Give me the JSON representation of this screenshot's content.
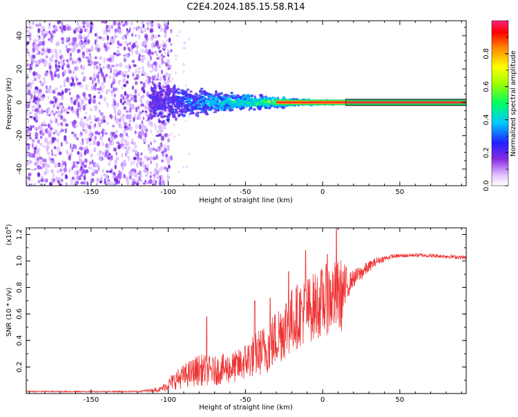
{
  "title": "C2E4.2024.185.15.58.R14",
  "colors": {
    "snr_line": "#ee3333",
    "signal_core": "#ff3030",
    "scatter_purple": "#7b2fe0",
    "axis": "#000000"
  },
  "chart_data": [
    {
      "type": "heatmap",
      "name": "spectrogram",
      "xlabel": "Height of straight line (km)",
      "ylabel": "Frequency (Hz)",
      "xlim": [
        -192,
        93
      ],
      "ylim": [
        -50,
        49
      ],
      "x_ticks": [
        -150,
        -100,
        -50,
        0,
        50
      ],
      "y_ticks": [
        -40,
        -20,
        0,
        20,
        40
      ],
      "signal_frequency": 0,
      "spread_hz": [
        [
          -110,
          16
        ],
        [
          -90,
          12
        ],
        [
          -70,
          9
        ],
        [
          -50,
          6
        ],
        [
          -30,
          4
        ],
        [
          -10,
          2
        ],
        [
          10,
          1
        ],
        [
          93,
          1
        ]
      ],
      "noise_edge_km": -100,
      "colorbar": {
        "label": "Normalized spectral amplitude",
        "range": [
          0.0,
          1.0
        ],
        "ticks": [
          0.0,
          0.2,
          0.4,
          0.6,
          0.8
        ]
      }
    },
    {
      "type": "line",
      "name": "snr",
      "xlabel": "Height of straight line (km)",
      "ylabel": "SNR (10 * v/v)",
      "y_multiplier": "(x10",
      "y_multiplier_exp": "4",
      "xlim": [
        -192,
        93
      ],
      "ylim": [
        0,
        1.25
      ],
      "x_ticks": [
        -150,
        -100,
        -50,
        0,
        50
      ],
      "y_ticks": [
        0.2,
        0.4,
        0.6,
        0.8,
        1.0,
        1.2
      ],
      "envelope": [
        {
          "x": -192,
          "low": 0.01,
          "high": 0.02
        },
        {
          "x": -120,
          "low": 0.01,
          "high": 0.02
        },
        {
          "x": -105,
          "low": 0.012,
          "high": 0.05
        },
        {
          "x": -95,
          "low": 0.03,
          "high": 0.18
        },
        {
          "x": -80,
          "low": 0.06,
          "high": 0.3
        },
        {
          "x": -70,
          "low": 0.06,
          "high": 0.28
        },
        {
          "x": -55,
          "low": 0.08,
          "high": 0.33
        },
        {
          "x": -45,
          "low": 0.12,
          "high": 0.45
        },
        {
          "x": -35,
          "low": 0.15,
          "high": 0.55
        },
        {
          "x": -25,
          "low": 0.25,
          "high": 0.75
        },
        {
          "x": -15,
          "low": 0.35,
          "high": 0.85
        },
        {
          "x": -5,
          "low": 0.4,
          "high": 0.92
        },
        {
          "x": 5,
          "low": 0.45,
          "high": 1.0
        },
        {
          "x": 12,
          "low": 0.45,
          "high": 1.02
        },
        {
          "x": 18,
          "low": 0.78,
          "high": 0.92
        },
        {
          "x": 25,
          "low": 0.85,
          "high": 0.97
        },
        {
          "x": 35,
          "low": 0.97,
          "high": 1.03
        },
        {
          "x": 45,
          "low": 1.02,
          "high": 1.05
        },
        {
          "x": 60,
          "low": 1.03,
          "high": 1.06
        },
        {
          "x": 80,
          "low": 1.02,
          "high": 1.05
        },
        {
          "x": 93,
          "low": 1.01,
          "high": 1.04
        }
      ],
      "peaks": [
        {
          "x": -75,
          "y": 0.58
        },
        {
          "x": -44,
          "y": 0.7
        },
        {
          "x": -34,
          "y": 0.72
        },
        {
          "x": -22,
          "y": 0.92
        },
        {
          "x": -11,
          "y": 1.08
        },
        {
          "x": 3,
          "y": 1.05
        },
        {
          "x": 9,
          "y": 1.25
        }
      ]
    }
  ]
}
